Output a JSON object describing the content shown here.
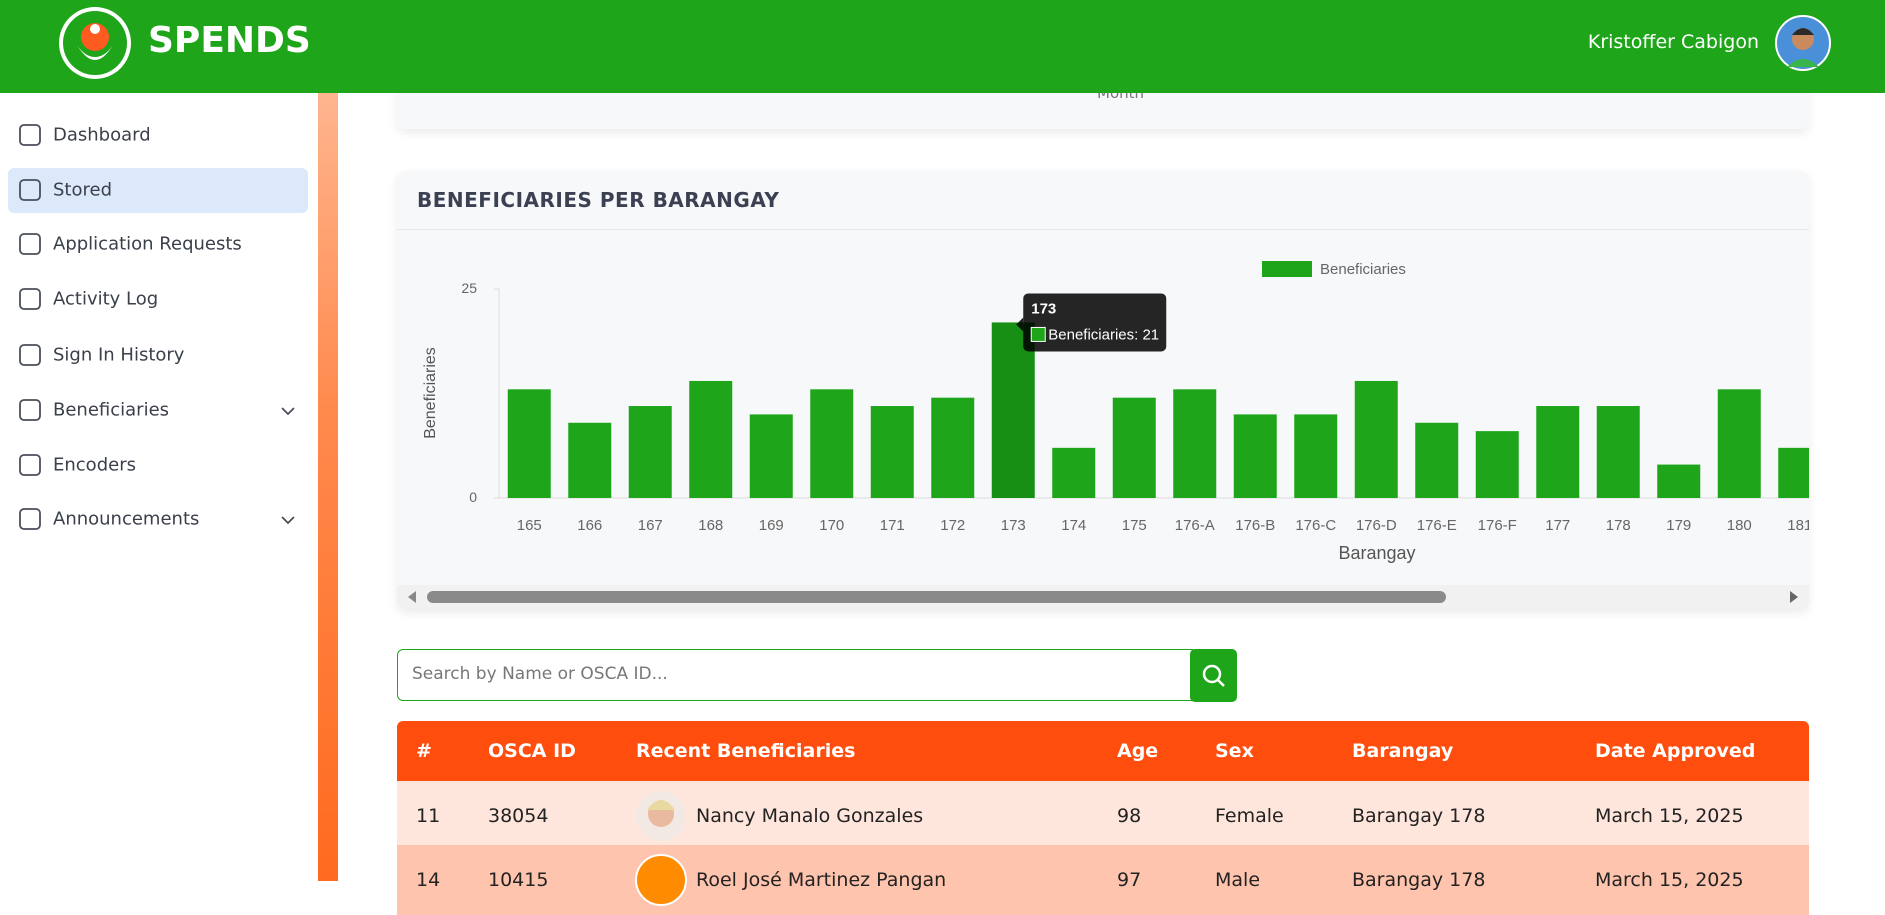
{
  "header": {
    "brand": "SPENDS",
    "user": "Kristoffer Cabigon"
  },
  "sidebar": {
    "items": [
      "Dashboard",
      "Stored",
      "Application Requests",
      "Activity Log",
      "Sign In History",
      "Beneficiaries",
      "Encoders",
      "Announcements"
    ]
  },
  "previous_chart": {
    "x_label": "Month"
  },
  "chart_data": {
    "type": "bar",
    "title": "BENEFICIARIES PER BARANGAY",
    "categories": [
      "165",
      "166",
      "167",
      "168",
      "169",
      "170",
      "171",
      "172",
      "173",
      "174",
      "175",
      "176-A",
      "176-B",
      "176-C",
      "176-D",
      "176-E",
      "176-F",
      "177",
      "178",
      "179",
      "180",
      "181"
    ],
    "series": [
      {
        "name": "Beneficiaries",
        "color": "#1ea51a",
        "values": [
          13,
          9,
          11,
          14,
          10,
          13,
          11,
          12,
          21,
          6,
          12,
          13,
          10,
          10,
          14,
          9,
          8,
          11,
          11,
          4,
          13,
          6
        ]
      }
    ],
    "ylim": [
      0,
      25
    ],
    "yticks": [
      0,
      25
    ],
    "grid": false,
    "x_label": "Barangay",
    "y_label": "Beneficiaries",
    "tooltip": {
      "title": "173",
      "label": "Beneficiaries: 21"
    }
  },
  "search": {
    "placeholder": "Search by Name or OSCA ID..."
  },
  "table": {
    "columns": [
      "#",
      "OSCA ID",
      "Recent Beneficiaries",
      "Age",
      "Sex",
      "Barangay",
      "Date Approved"
    ],
    "rows": [
      [
        "11",
        "38054",
        "Nancy Manalo Gonzales",
        "98",
        "Female",
        "Barangay 178",
        "March 15, 2025"
      ],
      [
        "14",
        "10415",
        "Roel José Martinez Pangan",
        "97",
        "Male",
        "Barangay 178",
        "March 15, 2025"
      ]
    ]
  }
}
